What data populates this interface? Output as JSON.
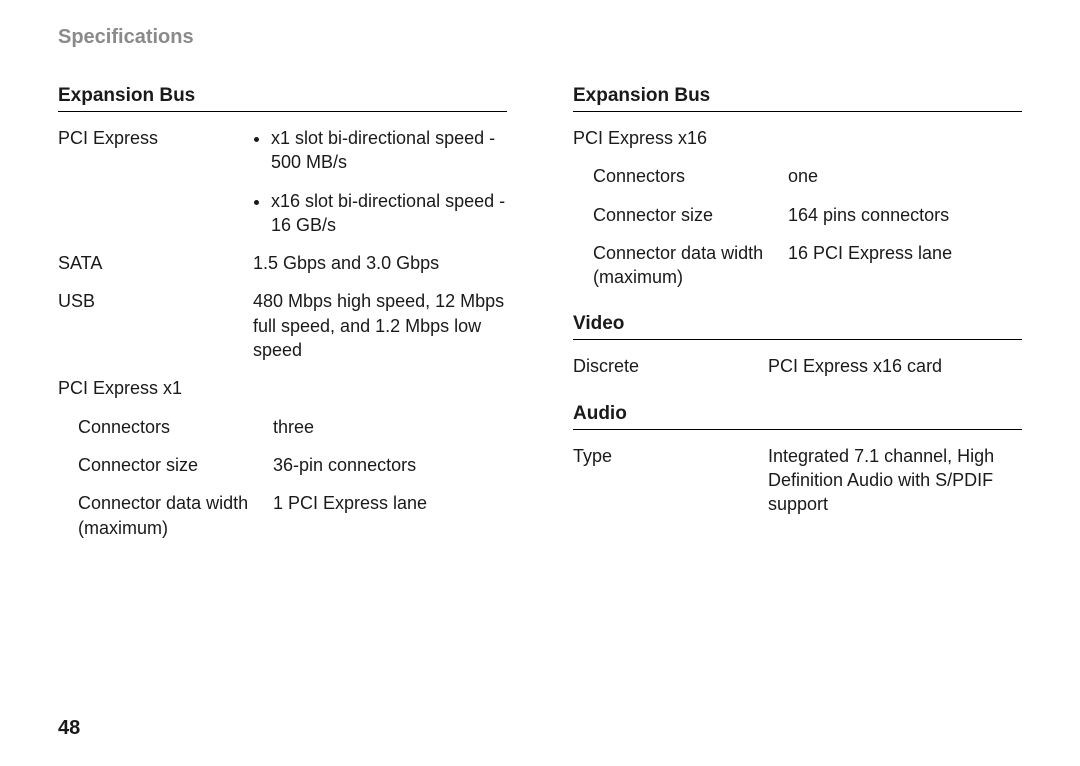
{
  "heading": "Specifications",
  "pageNumber": "48",
  "left": {
    "section1": {
      "title": "Expansion Bus",
      "rows": {
        "pciExpress": {
          "label": "PCI Express",
          "bullets": [
            "x1 slot bi-directional speed - 500 MB/s",
            "x16 slot bi-directional speed - 16 GB/s"
          ]
        },
        "sata": {
          "label": "SATA",
          "value": "1.5 Gbps and 3.0 Gbps"
        },
        "usb": {
          "label": "USB",
          "value": "480 Mbps high speed, 12 Mbps full speed, and 1.2 Mbps low speed"
        }
      },
      "pcix1": {
        "heading": "PCI Express x1",
        "connectors": {
          "label": "Connectors",
          "value": "three"
        },
        "connectorSize": {
          "label": "Connector size",
          "value": "36-pin connectors"
        },
        "connectorData": {
          "label": "Connector data width (maximum)",
          "value": "1 PCI Express lane"
        }
      }
    }
  },
  "right": {
    "section1": {
      "title": "Expansion Bus",
      "pcix16": {
        "heading": "PCI Express x16",
        "connectors": {
          "label": "Connectors",
          "value": "one"
        },
        "connectorSize": {
          "label": "Connector size",
          "value": "164 pins connectors"
        },
        "connectorData": {
          "label": "Connector data width (maximum)",
          "value": "16 PCI Express lane"
        }
      }
    },
    "video": {
      "title": "Video",
      "discrete": {
        "label": "Discrete",
        "value": "PCI Express x16 card"
      }
    },
    "audio": {
      "title": "Audio",
      "type": {
        "label": "Type",
        "value": "Integrated 7.1 channel, High Definition Audio with S/PDIF support"
      }
    }
  }
}
